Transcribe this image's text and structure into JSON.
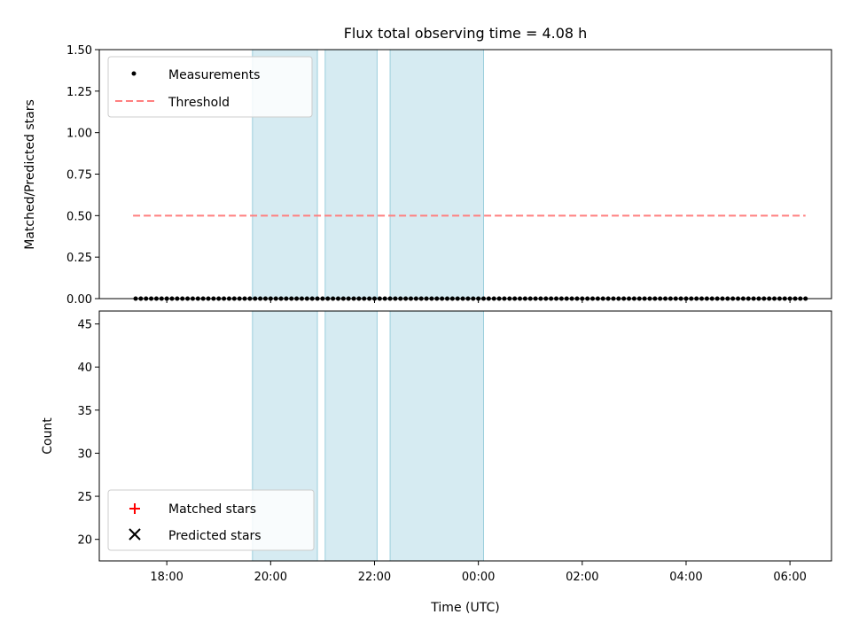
{
  "chart_data": [
    {
      "type": "scatter",
      "title": "Flux total observing time = 4.08 h",
      "xlabel": "",
      "ylabel": "Matched/Predicted stars",
      "xlim": [
        -1.3,
        12.8
      ],
      "ylim": [
        0,
        1.5
      ],
      "yticks": [
        "0.00",
        "0.25",
        "0.50",
        "0.75",
        "1.00",
        "1.25",
        "1.50"
      ],
      "shaded_intervals_hours": [
        [
          1.65,
          2.9
        ],
        [
          3.05,
          4.05
        ],
        [
          4.3,
          6.1
        ]
      ],
      "threshold": {
        "name": "Threshold",
        "value": 0.5,
        "x_range": [
          -0.65,
          12.3
        ],
        "color": "#ff7f7f"
      },
      "series": [
        {
          "name": "Measurements",
          "color": "#000000",
          "marker": "dot",
          "x": [
            -0.6,
            -0.5,
            -0.4,
            -0.3,
            -0.2,
            -0.1,
            0.0,
            0.1,
            0.2,
            0.3,
            0.4,
            0.5,
            0.6,
            0.7,
            0.8,
            0.9,
            1.0,
            1.1,
            1.2,
            1.3,
            1.4,
            1.5,
            1.6,
            1.7,
            1.8,
            1.9,
            2.0,
            2.1,
            2.2,
            2.3,
            2.4,
            2.5,
            2.6,
            2.7,
            2.8,
            2.9,
            3.0,
            3.1,
            3.2,
            3.3,
            3.4,
            3.5,
            3.6,
            3.7,
            3.8,
            3.9,
            4.0,
            4.1,
            4.2,
            4.3,
            4.4,
            4.5,
            4.6,
            4.7,
            4.8,
            4.9,
            5.0,
            5.1,
            5.2,
            5.3,
            5.4,
            5.5,
            5.6,
            5.7,
            5.8,
            5.9,
            6.0,
            6.1,
            6.2,
            6.3,
            6.4,
            6.5,
            6.6,
            6.7,
            6.8,
            6.9,
            7.0,
            7.1,
            7.2,
            7.3,
            7.4,
            7.5,
            7.6,
            7.7,
            7.8,
            7.9,
            8.0,
            8.1,
            8.2,
            8.3,
            8.4,
            8.5,
            8.6,
            8.7,
            8.8,
            8.9,
            9.0,
            9.1,
            9.2,
            9.3,
            9.4,
            9.5,
            9.6,
            9.7,
            9.8,
            9.9,
            10.0,
            10.1,
            10.2,
            10.3,
            10.4,
            10.5,
            10.6,
            10.7,
            10.8,
            10.9,
            11.0,
            11.1,
            11.2,
            11.3,
            11.4,
            11.5,
            11.6,
            11.7,
            11.8,
            11.9,
            12.0,
            12.1,
            12.2,
            12.3
          ],
          "y": [
            0,
            0,
            0,
            0,
            0,
            0,
            0,
            0,
            0,
            0,
            0,
            0,
            0,
            0,
            0,
            0,
            0,
            0,
            0,
            0,
            0,
            0,
            0,
            0,
            0,
            0,
            0,
            0,
            0,
            0,
            0,
            0,
            0,
            0,
            0,
            0,
            0,
            0,
            0,
            0,
            0,
            0,
            0,
            0,
            0,
            0,
            0,
            0,
            0,
            0,
            0,
            0,
            0,
            0,
            0,
            0,
            0,
            0,
            0,
            0,
            0,
            0,
            0,
            0,
            0,
            0,
            0,
            0,
            0,
            0,
            0,
            0,
            0,
            0,
            0,
            0,
            0,
            0,
            0,
            0,
            0,
            0,
            0,
            0,
            0,
            0,
            0,
            0,
            0,
            0,
            0,
            0,
            0,
            0,
            0,
            0,
            0,
            0,
            0,
            0,
            0,
            0,
            0,
            0,
            0,
            0,
            0,
            0,
            0,
            0,
            0,
            0,
            0,
            0,
            0,
            0,
            0,
            0,
            0,
            0,
            0,
            0,
            0,
            0,
            0,
            0,
            0,
            0,
            0,
            0
          ]
        }
      ]
    },
    {
      "type": "scatter",
      "title": "",
      "xlabel": "Time (UTC)",
      "ylabel": "Count",
      "xlim": [
        -1.3,
        12.8
      ],
      "ylim": [
        17.5,
        46.5
      ],
      "yticks": [
        "20",
        "25",
        "30",
        "35",
        "40",
        "45"
      ],
      "xtick_hours": [
        0,
        2,
        4,
        6,
        8,
        10,
        12
      ],
      "xticks": [
        "18:00",
        "20:00",
        "22:00",
        "00:00",
        "02:00",
        "04:00",
        "06:00"
      ],
      "series": [
        {
          "name": "Matched stars",
          "color": "#ff0000",
          "marker": "plus",
          "x": [],
          "y": []
        },
        {
          "name": "Predicted stars",
          "color": "#000000",
          "marker": "x",
          "x": [],
          "y": []
        }
      ]
    }
  ]
}
